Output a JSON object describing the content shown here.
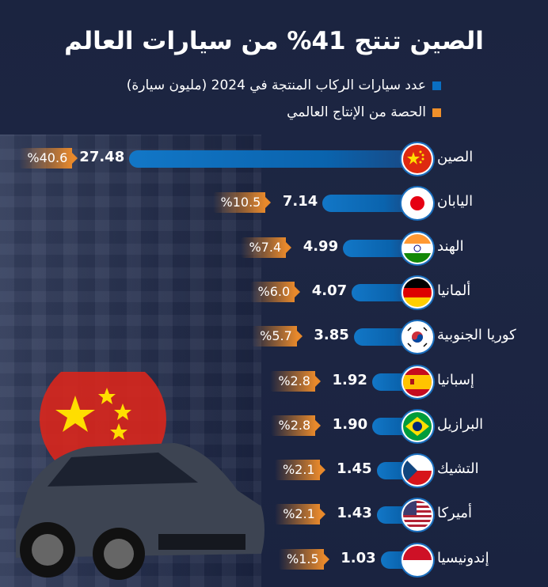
{
  "chart_data": {
    "type": "bar",
    "orientation": "horizontal",
    "title": "الصين تنتج 41% من سيارات العالم",
    "legend": [
      {
        "label": "عدد سيارات الركاب المنتجة في 2024 (مليون سيارة)",
        "color": "#0a6fc2"
      },
      {
        "label": "الحصة من الإنتاج العالمي",
        "color": "#f0902a"
      }
    ],
    "categories": [
      "الصين",
      "اليابان",
      "الهند",
      "ألمانيا",
      "كوريا الجنوبية",
      "إسبانيا",
      "البرازيل",
      "التشيك",
      "أميركا",
      "إندونيسيا"
    ],
    "flags": [
      "cn",
      "jp",
      "in",
      "de",
      "kr",
      "es",
      "br",
      "cz",
      "us",
      "id"
    ],
    "series": [
      {
        "name": "عدد سيارات الركاب المنتجة في 2024 (مليون سيارة)",
        "values": [
          27.48,
          7.14,
          4.99,
          4.07,
          3.85,
          1.92,
          1.9,
          1.45,
          1.43,
          1.03
        ]
      },
      {
        "name": "الحصة من الإنتاج العالمي",
        "values": [
          "%40.6",
          "%10.5",
          "%7.4",
          "%6.0",
          "%5.7",
          "%2.8",
          "%2.8",
          "%2.1",
          "%2.1",
          "%1.5"
        ]
      }
    ]
  }
}
